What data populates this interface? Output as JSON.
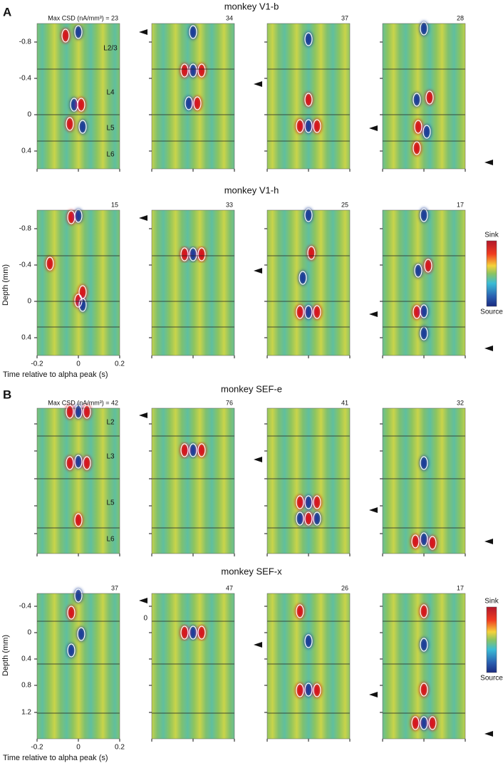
{
  "figure": {
    "ylabel": "Depth (mm)",
    "xlabel": "Time relative to alpha peak (s)",
    "xticks": [
      "-0.2",
      "0",
      "0.2"
    ],
    "colorbar": {
      "top": "Sink",
      "bottom": "Source"
    },
    "panels": [
      {
        "letter": "A",
        "rows": [
          {
            "title": "monkey V1-b",
            "labels": [
              "Max CSD (nA/mm³) = 23",
              "34",
              "37",
              "28"
            ],
            "layers": [
              "L2/3",
              "L4",
              "L5",
              "L6"
            ],
            "yticks": [
              "-0.8",
              "-0.4",
              "0",
              "0.4"
            ]
          },
          {
            "title": "monkey V1-h",
            "labels": [
              "15",
              "33",
              "25",
              "17"
            ],
            "yticks": [
              "-0.8",
              "-0.4",
              "0",
              "0.4"
            ]
          }
        ]
      },
      {
        "letter": "B",
        "rows": [
          {
            "title": "monkey SEF-e",
            "labels": [
              "Max CSD (nA/mm³) = 42",
              "76",
              "41",
              "32"
            ],
            "layers": [
              "L2",
              "L3",
              "L5",
              "L6"
            ]
          },
          {
            "title": "monkey SEF-x",
            "labels": [
              "37",
              "47",
              "26",
              "17"
            ],
            "yticks": [
              "-0.4",
              "0",
              "0.4",
              "0.8",
              "1.2"
            ],
            "extra_tick": "0"
          }
        ]
      }
    ]
  }
}
